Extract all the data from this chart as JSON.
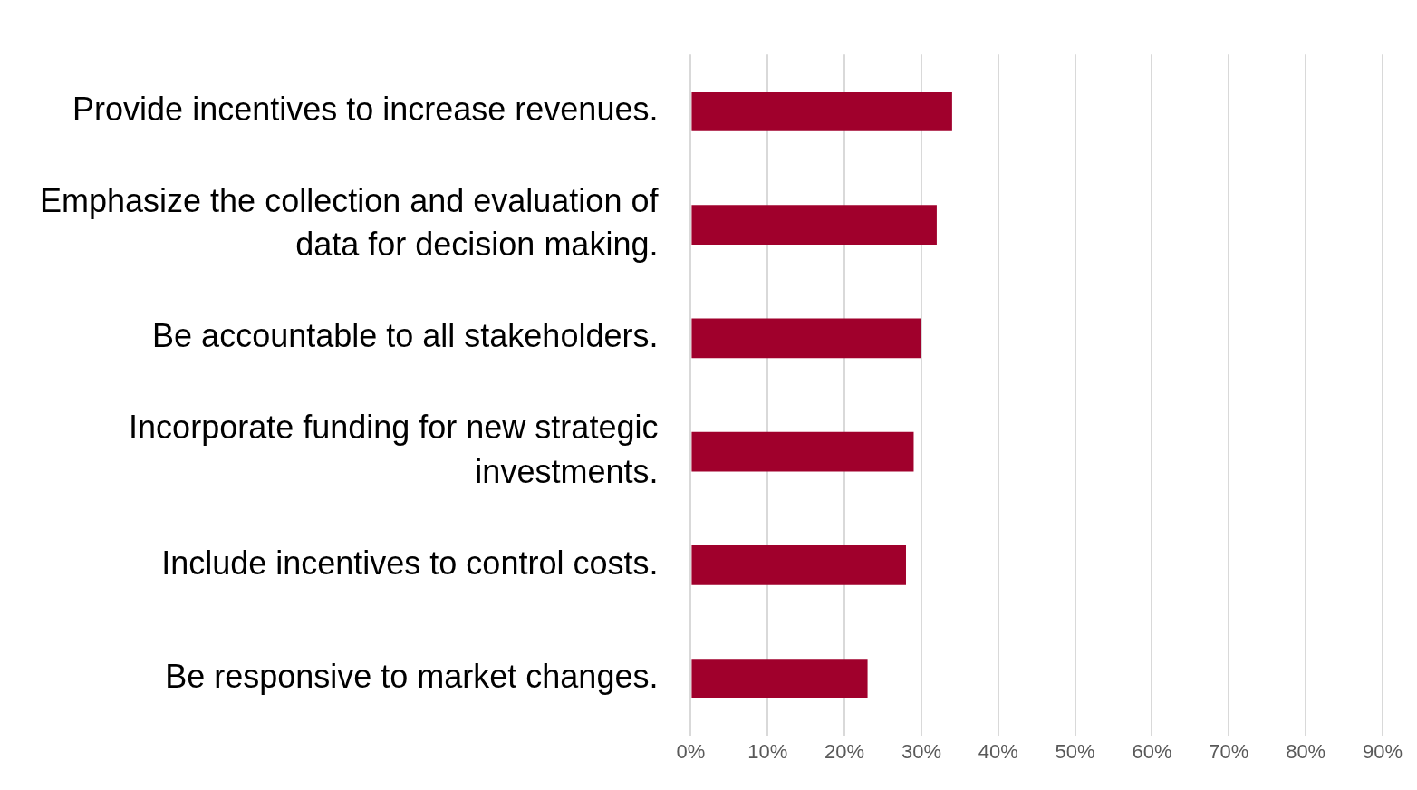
{
  "chart_data": {
    "type": "bar",
    "orientation": "horizontal",
    "categories": [
      "Provide incentives to increase revenues.",
      "Emphasize the collection and evaluation of data for decision making.",
      "Be accountable to all stakeholders.",
      "Incorporate funding for new strategic investments.",
      "Include incentives to control costs.",
      "Be responsive to market changes."
    ],
    "values": [
      34,
      32,
      30,
      29,
      28,
      23
    ],
    "color": "#a0002c",
    "xlim": [
      0,
      90
    ],
    "xticks": [
      {
        "value": 0,
        "label": "0%"
      },
      {
        "value": 10,
        "label": "10%"
      },
      {
        "value": 20,
        "label": "20%"
      },
      {
        "value": 30,
        "label": "30%"
      },
      {
        "value": 40,
        "label": "40%"
      },
      {
        "value": 50,
        "label": "50%"
      },
      {
        "value": 60,
        "label": "60%"
      },
      {
        "value": 70,
        "label": "70%"
      },
      {
        "value": 80,
        "label": "80%"
      },
      {
        "value": 90,
        "label": "90%"
      }
    ],
    "grid": "x",
    "legend": false
  }
}
